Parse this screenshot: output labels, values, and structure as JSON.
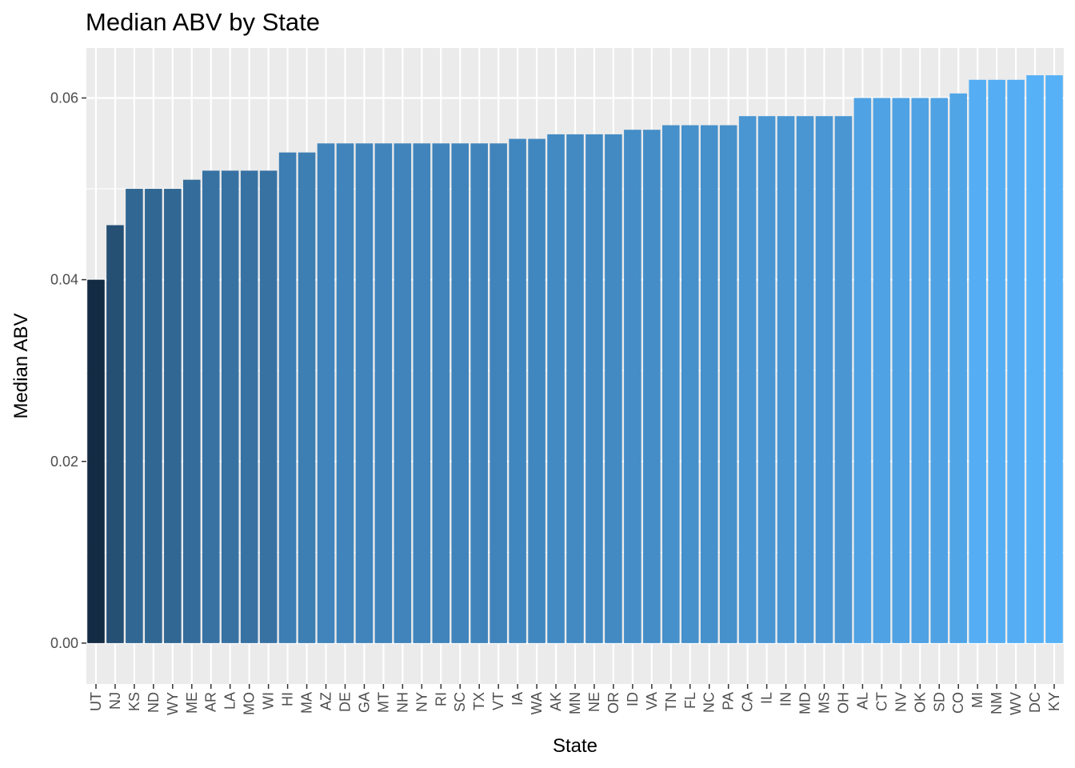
{
  "chart_data": {
    "type": "bar",
    "title": "Median ABV by State",
    "xlabel": "State",
    "ylabel": "Median ABV",
    "ylim": [
      -0.0045,
      0.0655
    ],
    "yticks": [
      0.0,
      0.02,
      0.04,
      0.06
    ],
    "ytick_labels": [
      "0.00",
      "0.02",
      "0.04",
      "0.06"
    ],
    "grid": true,
    "legend": "none",
    "fill_gradient": {
      "low": "#132B43",
      "high": "#56B1F7"
    },
    "panel_background": "#EBEBEB",
    "grid_color": "#FFFFFF",
    "categories": [
      "UT",
      "NJ",
      "KS",
      "ND",
      "WY",
      "ME",
      "AR",
      "LA",
      "MO",
      "WI",
      "HI",
      "MA",
      "AZ",
      "DE",
      "GA",
      "MT",
      "NH",
      "NY",
      "RI",
      "SC",
      "TX",
      "VT",
      "IA",
      "WA",
      "AK",
      "MN",
      "NE",
      "OR",
      "ID",
      "VA",
      "TN",
      "FL",
      "NC",
      "PA",
      "CA",
      "IL",
      "IN",
      "MD",
      "MS",
      "OH",
      "AL",
      "CT",
      "NV",
      "OK",
      "SD",
      "CO",
      "MI",
      "NM",
      "WV",
      "DC",
      "KY"
    ],
    "values": [
      0.04,
      0.046,
      0.05,
      0.05,
      0.05,
      0.051,
      0.052,
      0.052,
      0.052,
      0.052,
      0.054,
      0.054,
      0.055,
      0.055,
      0.055,
      0.055,
      0.055,
      0.055,
      0.055,
      0.055,
      0.055,
      0.055,
      0.0555,
      0.0555,
      0.056,
      0.056,
      0.056,
      0.056,
      0.0565,
      0.0565,
      0.057,
      0.057,
      0.057,
      0.057,
      0.058,
      0.058,
      0.058,
      0.058,
      0.058,
      0.058,
      0.06,
      0.06,
      0.06,
      0.06,
      0.06,
      0.0605,
      0.062,
      0.062,
      0.062,
      0.0625,
      0.0625
    ]
  }
}
